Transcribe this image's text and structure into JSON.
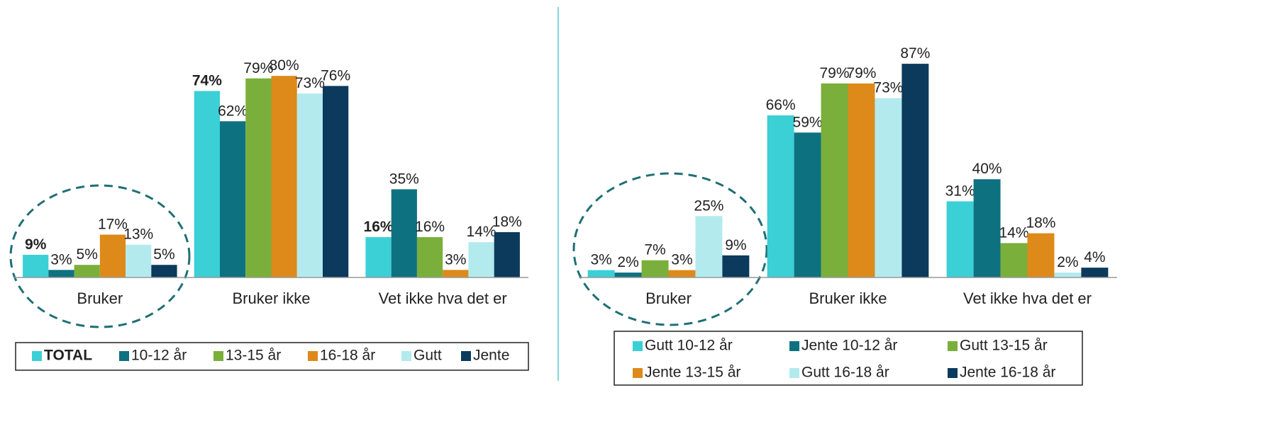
{
  "chart_data": [
    {
      "type": "bar",
      "categories": [
        "Bruker",
        "Bruker ikke",
        "Vet ikke hva det er"
      ],
      "ylim": [
        0,
        100
      ],
      "series": [
        {
          "name": "TOTAL",
          "color": "#3bcfd6",
          "values": [
            9,
            74,
            16
          ],
          "value_labels": [
            "9%",
            "74%",
            "16%"
          ]
        },
        {
          "name": "10-12 år",
          "color": "#0e7180",
          "values": [
            3,
            62,
            35
          ],
          "value_labels": [
            "3%",
            "62%",
            "35%"
          ]
        },
        {
          "name": "13-15 år",
          "color": "#7aaf3b",
          "values": [
            5,
            79,
            16
          ],
          "value_labels": [
            "5%",
            "79%",
            "16%"
          ]
        },
        {
          "name": "16-18 år",
          "color": "#dd8a1a",
          "values": [
            17,
            80,
            3
          ],
          "value_labels": [
            "17%",
            "80%",
            "3%"
          ]
        },
        {
          "name": "Gutt",
          "color": "#b3eaee",
          "values": [
            13,
            73,
            14
          ],
          "value_labels": [
            "13%",
            "73%",
            "14%"
          ]
        },
        {
          "name": "Jente",
          "color": "#0b3a5c",
          "values": [
            5,
            76,
            18
          ],
          "value_labels": [
            "5%",
            "76%",
            "18%"
          ]
        }
      ]
    },
    {
      "type": "bar",
      "categories": [
        "Bruker",
        "Bruker ikke",
        "Vet ikke hva det er"
      ],
      "ylim": [
        0,
        100
      ],
      "series": [
        {
          "name": "Gutt 10-12 år",
          "color": "#3bcfd6",
          "values": [
            3,
            66,
            31
          ],
          "value_labels": [
            "3%",
            "66%",
            "31%"
          ]
        },
        {
          "name": "Jente 10-12 år",
          "color": "#0e7180",
          "values": [
            2,
            59,
            40
          ],
          "value_labels": [
            "2%",
            "59%",
            "40%"
          ]
        },
        {
          "name": "Gutt 13-15 år",
          "color": "#7aaf3b",
          "values": [
            7,
            79,
            14
          ],
          "value_labels": [
            "7%",
            "79%",
            "14%"
          ]
        },
        {
          "name": "Jente 13-15 år",
          "color": "#dd8a1a",
          "values": [
            3,
            79,
            18
          ],
          "value_labels": [
            "3%",
            "79%",
            "18%"
          ]
        },
        {
          "name": "Gutt 16-18 år",
          "color": "#b3eaee",
          "values": [
            25,
            73,
            2
          ],
          "value_labels": [
            "25%",
            "73%",
            "2%"
          ]
        },
        {
          "name": "Jente 16-18 år",
          "color": "#0b3a5c",
          "values": [
            9,
            87,
            4
          ],
          "value_labels": [
            "9%",
            "87%",
            "4%"
          ]
        }
      ]
    }
  ]
}
